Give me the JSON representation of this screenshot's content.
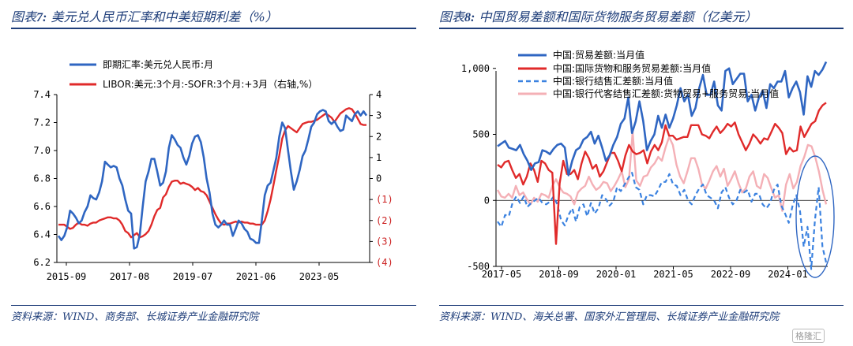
{
  "left": {
    "title_prefix": "图表",
    "title_num": "7:",
    "title_text": "美元兑人民币汇率和中美短期利差（%）",
    "source": "资料来源：WIND、商务部、长城证券产业金融研究院",
    "colors": {
      "fx": "#2f66c2",
      "spread": "#e02a2a"
    },
    "chart_data": {
      "type": "line",
      "x_tick_labels": [
        "2015-09",
        "2017-08",
        "2019-07",
        "2021-06",
        "2023-05"
      ],
      "y_left": {
        "ylim": [
          6.2,
          7.4
        ],
        "ticks": [
          "6.2",
          "6.4",
          "6.6",
          "6.8",
          "7.0",
          "7.2",
          "7.4"
        ]
      },
      "y_right": {
        "ylim": [
          -4,
          4
        ],
        "ticks": [
          "(4)",
          "(3)",
          "(2)",
          "(1)",
          "0",
          "1",
          "2",
          "3",
          "4"
        ]
      },
      "series": [
        {
          "name": "即期汇率:美元兑人民币:月",
          "axis": "left",
          "values": [
            6.39,
            6.36,
            6.39,
            6.45,
            6.57,
            6.55,
            6.52,
            6.48,
            6.5,
            6.56,
            6.6,
            6.68,
            6.66,
            6.65,
            6.7,
            6.78,
            6.92,
            6.9,
            6.88,
            6.89,
            6.88,
            6.8,
            6.75,
            6.65,
            6.57,
            6.55,
            6.3,
            6.31,
            6.4,
            6.6,
            6.78,
            6.85,
            6.94,
            6.94,
            6.85,
            6.75,
            6.77,
            6.85,
            7.02,
            7.11,
            7.08,
            7.04,
            7.02,
            6.95,
            6.9,
            6.96,
            7.05,
            7.1,
            7.11,
            7.06,
            6.95,
            6.8,
            6.7,
            6.55,
            6.47,
            6.45,
            6.47,
            6.5,
            6.47,
            6.47,
            6.39,
            6.44,
            6.5,
            6.48,
            6.44,
            6.42,
            6.37,
            6.36,
            6.34,
            6.34,
            6.5,
            6.68,
            6.75,
            6.77,
            6.86,
            6.95,
            7.1,
            7.2,
            7.16,
            7.0,
            6.85,
            6.72,
            6.78,
            6.86,
            6.96,
            7.0,
            7.08,
            7.17,
            7.2,
            7.26,
            7.28,
            7.29,
            7.28,
            7.21,
            7.19,
            7.21,
            7.17,
            7.14,
            7.15,
            7.25,
            7.23,
            7.21,
            7.26,
            7.28,
            7.25,
            7.28,
            7.25
          ]
        },
        {
          "name": "LIBOR:美元:3个月:-SOFR:3个月:+3月（右轴,%）",
          "axis": "right",
          "values": [
            -2.2,
            -2.2,
            -2.2,
            -2.3,
            -2.4,
            -2.35,
            -2.2,
            -2.1,
            -2.2,
            -2.2,
            -2.25,
            -2.15,
            -2.1,
            -2.1,
            -2.0,
            -1.95,
            -1.9,
            -1.85,
            -1.85,
            -1.9,
            -1.9,
            -2.0,
            -2.2,
            -2.5,
            -2.6,
            -2.8,
            -2.7,
            -2.6,
            -2.8,
            -2.75,
            -2.65,
            -2.5,
            -2.2,
            -1.8,
            -1.5,
            -1.4,
            -0.9,
            -0.75,
            -0.4,
            -0.15,
            -0.1,
            -0.1,
            -0.25,
            -0.2,
            -0.25,
            -0.3,
            -0.4,
            -0.55,
            -0.45,
            -0.6,
            -0.65,
            -0.8,
            -1.1,
            -1.4,
            -1.7,
            -1.95,
            -2.15,
            -2.2,
            -2.15,
            -2.15,
            -2.1,
            -2.05,
            -2.1,
            -2.05,
            -2.1,
            -2.1,
            -2.15,
            -2.15,
            -2.2,
            -2.2,
            -2.2,
            -2.0,
            -1.55,
            -1.0,
            -0.3,
            0.4,
            1.1,
            1.9,
            2.3,
            2.5,
            2.4,
            2.3,
            2.2,
            2.4,
            2.6,
            2.65,
            2.7,
            2.7,
            2.75,
            2.8,
            2.9,
            3.0,
            3.1,
            3.0,
            2.9,
            2.7,
            2.9,
            3.1,
            3.2,
            3.3,
            3.35,
            3.3,
            3.1,
            2.85,
            2.6,
            2.55,
            2.55
          ]
        }
      ]
    }
  },
  "right": {
    "title_prefix": "图表",
    "title_num": "8:",
    "title_text": "中国贸易差额和国际货物服务贸易差额（亿美元）",
    "source": "资料来源：WIND、海关总署、国家外汇管理局、长城证券产业金融研究院",
    "colors": {
      "trade": "#2f66c2",
      "bop": "#e02a2a",
      "bank_fx": "#3b82e0",
      "bank_agent": "#f4b0b6",
      "circle": "#2f66c2"
    },
    "chart_data": {
      "type": "line",
      "x_tick_labels": [
        "2017-05",
        "2018-09",
        "2020-01",
        "2021-05",
        "2022-09",
        "2024-01"
      ],
      "y": {
        "ylim": [
          -500,
          1100
        ],
        "ticks": [
          "-500",
          "0",
          "500",
          "1,000"
        ]
      },
      "series": [
        {
          "name": "中国:贸易差额:当月值",
          "style": "solid",
          "values": [
            410,
            430,
            450,
            400,
            390,
            380,
            420,
            350,
            300,
            230,
            280,
            290,
            380,
            370,
            350,
            390,
            420,
            430,
            400,
            190,
            300,
            380,
            400,
            460,
            480,
            520,
            430,
            490,
            400,
            300,
            340,
            420,
            480,
            580,
            620,
            780,
            510,
            600,
            750,
            600,
            380,
            450,
            500,
            640,
            550,
            650,
            550,
            620,
            720,
            850,
            750,
            800,
            640,
            700,
            850,
            950,
            800,
            800,
            900,
            720,
            680,
            980,
            1000,
            880,
            920,
            960,
            960,
            750,
            800,
            680,
            780,
            830,
            700,
            880,
            850,
            900,
            900,
            980,
            780,
            850,
            900,
            820,
            650,
            940,
            860,
            980,
            950,
            990,
            1050
          ]
        },
        {
          "name": "中国:国际货物和服务贸易差额:当月值",
          "style": "solid",
          "values": [
            270,
            250,
            290,
            300,
            230,
            170,
            200,
            120,
            180,
            280,
            230,
            140,
            300,
            280,
            230,
            210,
            -330,
            130,
            300,
            200,
            200,
            230,
            160,
            280,
            370,
            320,
            240,
            270,
            180,
            220,
            290,
            360,
            360,
            300,
            220,
            340,
            420,
            370,
            350,
            360,
            380,
            280,
            370,
            420,
            380,
            440,
            570,
            490,
            490,
            460,
            470,
            480,
            480,
            570,
            570,
            570,
            500,
            490,
            470,
            520,
            560,
            510,
            540,
            580,
            560,
            590,
            500,
            440,
            380,
            430,
            500,
            470,
            430,
            470,
            460,
            520,
            580,
            550,
            510,
            350,
            400,
            370,
            380,
            560,
            480,
            530,
            580,
            600,
            680,
            720,
            740
          ]
        },
        {
          "name": "中国:银行结售汇差额:当月值",
          "style": "dashed",
          "values": [
            -160,
            -200,
            -110,
            -120,
            -20,
            30,
            -20,
            30,
            -50,
            -20,
            0,
            20,
            -20,
            -30,
            -10,
            30,
            -30,
            -150,
            -190,
            -110,
            -60,
            -160,
            -50,
            -30,
            -120,
            -20,
            -100,
            -60,
            40,
            10,
            -40,
            -10,
            100,
            70,
            120,
            170,
            210,
            100,
            80,
            -30,
            40,
            40,
            30,
            80,
            140,
            140,
            200,
            120,
            110,
            40,
            80,
            0,
            -30,
            40,
            90,
            120,
            40,
            20,
            0,
            -60,
            60,
            100,
            20,
            -30,
            0,
            80,
            60,
            80,
            -10,
            50,
            50,
            -30,
            -60,
            -20,
            80,
            120,
            -40,
            -100,
            -170,
            -40,
            40,
            -80,
            -350,
            -200,
            -520,
            -150,
            100,
            -350,
            -470
          ]
        },
        {
          "name": "中国:银行代客结售汇差额:货物贸易+服务贸易:当月值",
          "style": "solid",
          "values": [
            80,
            30,
            20,
            50,
            20,
            110,
            40,
            60,
            10,
            -30,
            20,
            -10,
            50,
            40,
            20,
            110,
            160,
            100,
            60,
            50,
            30,
            -30,
            60,
            90,
            110,
            180,
            120,
            80,
            100,
            140,
            130,
            70,
            110,
            160,
            220,
            100,
            160,
            520,
            150,
            110,
            180,
            190,
            250,
            280,
            330,
            300,
            400,
            480,
            420,
            270,
            180,
            130,
            220,
            320,
            320,
            240,
            120,
            90,
            150,
            220,
            260,
            180,
            240,
            110,
            160,
            220,
            130,
            60,
            90,
            180,
            220,
            110,
            90,
            200,
            170,
            90,
            20,
            40,
            -80,
            120,
            200,
            90,
            140,
            260,
            330,
            420,
            410,
            330,
            220,
            80,
            -30
          ]
        }
      ]
    }
  },
  "watermark": "格隆汇"
}
